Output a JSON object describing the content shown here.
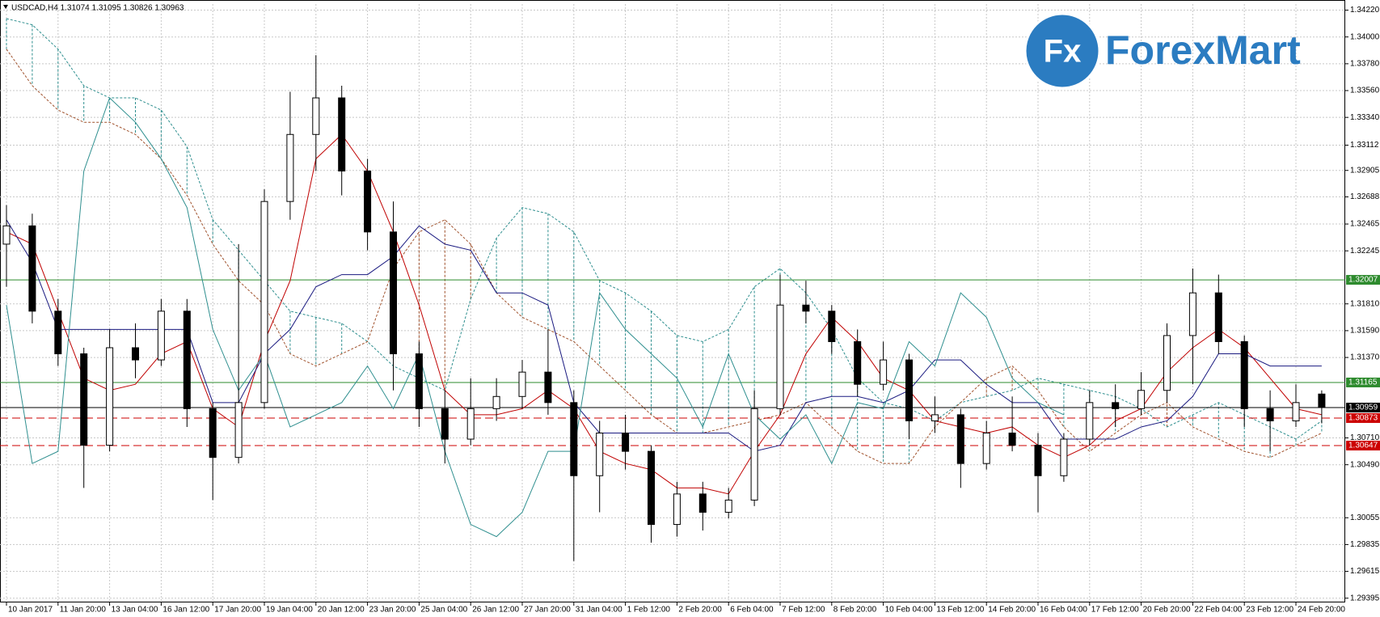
{
  "chart_data": {
    "type": "candlestick",
    "title": "USDCAD,H4  1.31074 1.31095 1.30826 1.30963",
    "logo": {
      "mark": "Fx",
      "text": "ForexMart"
    },
    "categories": [
      "10 Jan 2017",
      null,
      "11 Jan 20:00",
      null,
      "13 Jan 04:00",
      null,
      "16 Jan 12:00",
      null,
      "17 Jan 20:00",
      null,
      "19 Jan 04:00",
      null,
      "20 Jan 12:00",
      null,
      "23 Jan 20:00",
      null,
      "25 Jan 04:00",
      null,
      "26 Jan 12:00",
      null,
      "27 Jan 20:00",
      null,
      "31 Jan 04:00",
      null,
      "1 Feb 12:00",
      null,
      "2 Feb 20:00",
      null,
      "6 Feb 04:00",
      null,
      "7 Feb 12:00",
      null,
      "8 Feb 20:00",
      null,
      "10 Feb 04:00",
      null,
      "13 Feb 12:00",
      null,
      "14 Feb 20:00",
      null,
      "16 Feb 04:00",
      null,
      "17 Feb 12:00",
      null,
      "20 Feb 20:00",
      null,
      "22 Feb 04:00",
      null,
      "23 Feb 12:00",
      null,
      "24 Feb 20:00",
      null
    ],
    "open": [
      1.323,
      1.3245,
      1.3175,
      1.314,
      1.3065,
      1.3145,
      1.3135,
      1.3175,
      1.3095,
      1.3055,
      1.31,
      1.3265,
      1.332,
      1.335,
      1.329,
      1.324,
      1.314,
      1.3095,
      1.307,
      1.3095,
      1.3105,
      1.3125,
      1.31,
      1.304,
      1.3075,
      1.306,
      1.3,
      1.3025,
      1.301,
      1.302,
      1.3095,
      1.318,
      1.3175,
      1.315,
      1.3115,
      1.3135,
      1.3085,
      1.309,
      1.305,
      1.3075,
      1.3065,
      1.304,
      1.307,
      1.31,
      1.3095,
      1.311,
      1.3155,
      1.319,
      1.315,
      1.3095,
      1.3085,
      1.3107
    ],
    "high": [
      1.3262,
      1.3255,
      1.3185,
      1.3145,
      1.316,
      1.3165,
      1.3185,
      1.3185,
      1.31,
      1.323,
      1.3275,
      1.3355,
      1.3385,
      1.336,
      1.33,
      1.3265,
      1.315,
      1.311,
      1.312,
      1.312,
      1.3135,
      1.316,
      1.311,
      1.3085,
      1.309,
      1.3065,
      1.3035,
      1.3035,
      1.303,
      1.311,
      1.3205,
      1.32,
      1.318,
      1.316,
      1.315,
      1.314,
      1.3105,
      1.3095,
      1.3085,
      1.3105,
      1.3075,
      1.3075,
      1.311,
      1.3115,
      1.3125,
      1.3165,
      1.321,
      1.3205,
      1.3155,
      1.311,
      1.3115,
      1.311
    ],
    "low": [
      1.3195,
      1.3165,
      1.313,
      1.303,
      1.306,
      1.312,
      1.313,
      1.308,
      1.302,
      1.305,
      1.3095,
      1.325,
      1.329,
      1.327,
      1.3225,
      1.311,
      1.308,
      1.305,
      1.3065,
      1.3085,
      1.3095,
      1.309,
      1.297,
      1.301,
      1.3045,
      1.2985,
      1.299,
      1.2995,
      1.3005,
      1.3015,
      1.309,
      1.3165,
      1.314,
      1.3105,
      1.311,
      1.307,
      1.3075,
      1.303,
      1.3045,
      1.306,
      1.301,
      1.3035,
      1.3065,
      1.308,
      1.309,
      1.31,
      1.3115,
      1.314,
      1.308,
      1.306,
      1.308,
      1.3083
    ],
    "close": [
      1.3245,
      1.3175,
      1.314,
      1.3065,
      1.3145,
      1.3135,
      1.3175,
      1.3095,
      1.3055,
      1.31,
      1.3265,
      1.332,
      1.335,
      1.329,
      1.324,
      1.314,
      1.3095,
      1.307,
      1.3095,
      1.3105,
      1.3125,
      1.31,
      1.304,
      1.3075,
      1.306,
      1.3,
      1.3025,
      1.301,
      1.302,
      1.3095,
      1.318,
      1.3175,
      1.315,
      1.3115,
      1.3135,
      1.3085,
      1.309,
      1.305,
      1.3075,
      1.3065,
      1.304,
      1.307,
      1.31,
      1.3095,
      1.311,
      1.3155,
      1.319,
      1.315,
      1.3095,
      1.3085,
      1.31,
      1.3096
    ],
    "series": [
      {
        "name": "Tenkan-sen",
        "color": "#c00000",
        "values": [
          1.324,
          1.323,
          1.3175,
          1.312,
          1.311,
          1.3115,
          1.314,
          1.315,
          1.3095,
          1.308,
          1.315,
          1.32,
          1.33,
          1.332,
          1.329,
          1.324,
          1.318,
          1.311,
          1.309,
          1.309,
          1.3095,
          1.311,
          1.3095,
          1.306,
          1.305,
          1.3045,
          1.303,
          1.303,
          1.3025,
          1.306,
          1.309,
          1.314,
          1.317,
          1.315,
          1.312,
          1.311,
          1.3085,
          1.308,
          1.3075,
          1.308,
          1.3065,
          1.3055,
          1.3065,
          1.3085,
          1.3095,
          1.3125,
          1.3145,
          1.316,
          1.3145,
          1.312,
          1.3095,
          1.309
        ]
      },
      {
        "name": "Kijun-sen",
        "color": "#1a1a80",
        "values": [
          1.325,
          1.3215,
          1.316,
          1.316,
          1.316,
          1.316,
          1.316,
          1.316,
          1.31,
          1.31,
          1.314,
          1.316,
          1.3195,
          1.3205,
          1.3205,
          1.322,
          1.3245,
          1.323,
          1.3225,
          1.319,
          1.319,
          1.318,
          1.31,
          1.3075,
          1.3075,
          1.3075,
          1.3075,
          1.3075,
          1.3075,
          1.306,
          1.3065,
          1.31,
          1.3105,
          1.3105,
          1.31,
          1.311,
          1.3135,
          1.3135,
          1.3115,
          1.31,
          1.31,
          1.307,
          1.307,
          1.307,
          1.308,
          1.3085,
          1.3105,
          1.314,
          1.314,
          1.313,
          1.313,
          1.313
        ]
      },
      {
        "name": "Chikou Span",
        "color": "#2f8f8f",
        "values": [
          1.318,
          1.305,
          1.306,
          1.329,
          1.335,
          1.333,
          1.33,
          1.326,
          1.316,
          1.311,
          1.314,
          1.308,
          1.309,
          1.31,
          1.313,
          1.3095,
          1.314,
          1.306,
          1.3,
          1.299,
          1.301,
          1.306,
          1.306,
          1.319,
          1.316,
          1.314,
          1.312,
          1.308,
          1.314,
          1.309,
          1.307,
          1.309,
          1.305,
          1.31,
          1.3095,
          1.315,
          1.313,
          1.319,
          1.317,
          1.312,
          1.31,
          1.309,
          null,
          null,
          null,
          null,
          null,
          null,
          null,
          null,
          null,
          null
        ]
      }
    ],
    "cloud": {
      "span_a": {
        "color": "#2f8f8f",
        "values": [
          1.3415,
          1.341,
          1.339,
          1.336,
          1.335,
          1.335,
          1.334,
          1.331,
          1.325,
          1.3225,
          1.32,
          1.3175,
          1.317,
          1.3165,
          1.315,
          1.313,
          1.312,
          1.311,
          1.3185,
          1.3235,
          1.326,
          1.3255,
          1.324,
          1.32,
          1.319,
          1.3175,
          1.3155,
          1.315,
          1.316,
          1.3195,
          1.321,
          1.319,
          1.316,
          1.312,
          1.31,
          1.3095,
          1.3085,
          1.31,
          1.3105,
          1.311,
          1.312,
          1.3115,
          1.311,
          1.3105,
          1.3095,
          1.308,
          1.309,
          1.31,
          1.309,
          1.308,
          1.307,
          1.3085
        ]
      },
      "span_b": {
        "color": "#a0522d",
        "values": [
          1.339,
          1.336,
          1.334,
          1.333,
          1.333,
          1.332,
          1.33,
          1.327,
          1.323,
          1.32,
          1.318,
          1.314,
          1.313,
          1.314,
          1.315,
          1.321,
          1.324,
          1.325,
          1.323,
          1.319,
          1.317,
          1.316,
          1.315,
          1.313,
          1.311,
          1.309,
          1.3075,
          1.3075,
          1.308,
          1.3085,
          1.309,
          1.31,
          1.308,
          1.306,
          1.305,
          1.305,
          1.308,
          1.31,
          1.312,
          1.313,
          1.311,
          1.308,
          1.306,
          1.3075,
          1.309,
          1.31,
          1.308,
          1.307,
          1.306,
          1.3055,
          1.3065,
          1.3075
        ]
      }
    },
    "levels": [
      {
        "value": 1.32007,
        "color": "#2e8b2e",
        "dashed": false
      },
      {
        "value": 1.31165,
        "color": "#2e8b2e",
        "dashed": false
      },
      {
        "value": 1.30959,
        "color": "#000000",
        "dashed": false
      },
      {
        "value": 1.30873,
        "color": "#cc0000",
        "dashed": true
      },
      {
        "value": 1.30647,
        "color": "#cc0000",
        "dashed": true
      }
    ],
    "ylim": [
      1.2936,
      1.3427
    ],
    "yticks": [
      {
        "value": 1.3422,
        "label": "1.34220"
      },
      {
        "value": 1.34,
        "label": "1.34000"
      },
      {
        "value": 1.3378,
        "label": "1.33780"
      },
      {
        "value": 1.3356,
        "label": "1.33560"
      },
      {
        "value": 1.3334,
        "label": "1.33340"
      },
      1.33112,
      1.32905,
      1.32688,
      1.32465,
      1.32245,
      {
        "value": 1.3181,
        "label": "1.31810"
      },
      {
        "value": 1.3159,
        "label": "1.31590"
      },
      {
        "value": 1.3137,
        "label": "1.31370"
      },
      {
        "value": 1.3071,
        "label": "1.30710"
      },
      {
        "value": 1.3049,
        "label": "1.30490"
      },
      1.30055,
      1.29835,
      1.29615,
      1.29395
    ],
    "grid": true,
    "colors": {
      "up": "#ffffff",
      "down": "#000000",
      "wick": "#000000"
    }
  }
}
